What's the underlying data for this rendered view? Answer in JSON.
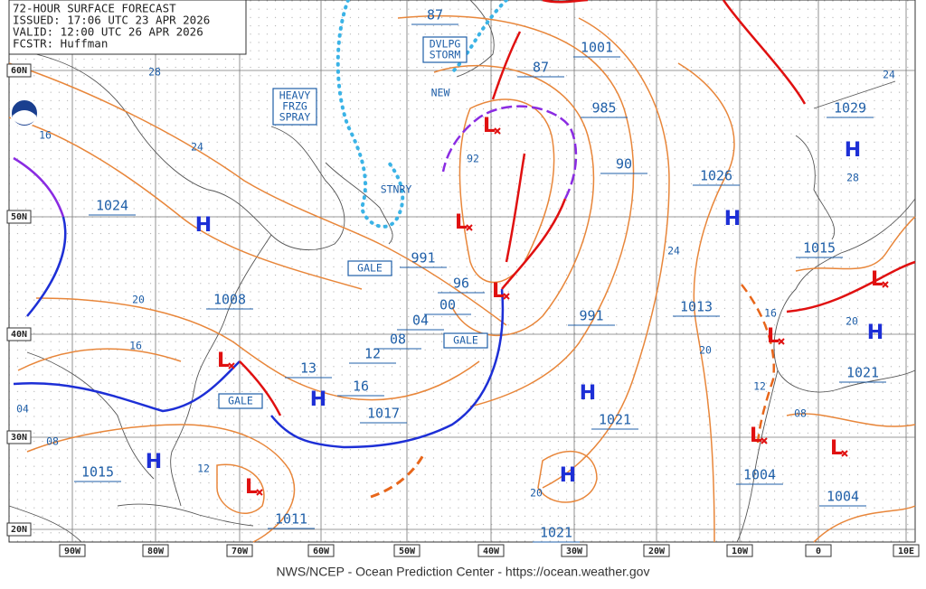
{
  "header": {
    "lines": [
      "72-HOUR SURFACE FORECAST",
      "ISSUED: 17:06 UTC 23 APR 2026",
      "VALID: 12:00 UTC 26 APR 2026",
      "FCSTR: Huffman"
    ]
  },
  "lat_labels": [
    "60N",
    "50N",
    "40N",
    "30N",
    "20N"
  ],
  "lon_labels": [
    "90W",
    "80W",
    "70W",
    "60W",
    "50W",
    "40W",
    "30W",
    "20W",
    "10W",
    "0",
    "10E"
  ],
  "pressure_labels": [
    "87",
    "1001",
    "87",
    "985",
    "1029",
    "90",
    "1026",
    "1024",
    "991",
    "1015",
    "96",
    "00",
    "991",
    "1013",
    "1008",
    "04",
    "08",
    "12",
    "13",
    "1021",
    "16",
    "1017",
    "1021",
    "1015",
    "1004",
    "1004",
    "1011",
    "1021"
  ],
  "isobar_labels": [
    "28",
    "16",
    "24",
    "92",
    "24",
    "20",
    "16",
    "20",
    "16",
    "20",
    "12",
    "08",
    "04",
    "08",
    "12",
    "20",
    "24",
    "28"
  ],
  "highs": [
    "H",
    "H",
    "H",
    "H",
    "H",
    "H",
    "H",
    "H"
  ],
  "lows": [
    "L",
    "L",
    "L",
    "L",
    "L",
    "L",
    "L",
    "L",
    "L"
  ],
  "boxed_labels": [
    [
      "HEAVY",
      "FRZG",
      "SPRAY"
    ],
    [
      "DVLPG",
      "STORM"
    ],
    [
      "GALE"
    ],
    [
      "GALE"
    ],
    [
      "GALE"
    ]
  ],
  "front_labels": [
    "NEW",
    "STNRY"
  ],
  "footer": "NWS/NCEP - Ocean Prediction Center - https://ocean.weather.gov"
}
